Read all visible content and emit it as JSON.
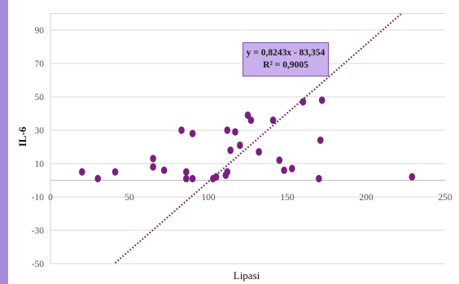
{
  "colors": {
    "left_strip": "#a78bd6",
    "point": "#7a1f82",
    "trendline": "#6b1c5e",
    "grid": "#d9d9d9",
    "equation_box": "#c9b0ec"
  },
  "chart_data": {
    "type": "scatter",
    "title": "",
    "xlabel": "Lipasi",
    "ylabel": "IL-6",
    "xlim": [
      0,
      250
    ],
    "ylim": [
      -50,
      100
    ],
    "x_ticks": [
      "0",
      "50",
      "100",
      "150",
      "200",
      "250"
    ],
    "y_ticks": [
      "90",
      "70",
      "50",
      "30",
      "10",
      "-10",
      "-30",
      "-50"
    ],
    "grid": "horizontal",
    "points": [
      [
        20,
        5
      ],
      [
        30,
        1
      ],
      [
        41,
        5
      ],
      [
        65,
        13
      ],
      [
        65,
        8
      ],
      [
        72,
        6
      ],
      [
        83,
        30
      ],
      [
        86,
        5
      ],
      [
        86,
        1
      ],
      [
        90,
        28
      ],
      [
        90,
        1
      ],
      [
        103,
        1
      ],
      [
        105,
        2
      ],
      [
        111,
        3
      ],
      [
        112,
        5
      ],
      [
        112,
        30
      ],
      [
        114,
        18
      ],
      [
        117,
        29
      ],
      [
        120,
        21
      ],
      [
        125,
        39
      ],
      [
        127,
        36
      ],
      [
        132,
        17
      ],
      [
        141,
        36
      ],
      [
        145,
        12
      ],
      [
        148,
        6
      ],
      [
        153,
        7
      ],
      [
        160,
        47
      ],
      [
        170,
        1
      ],
      [
        171,
        24
      ],
      [
        172,
        48
      ],
      [
        229,
        2
      ]
    ],
    "trendline": {
      "equation": "y = 0,8243x - 83,354",
      "r_squared": "R² = 0,9005",
      "slope": 0.8243,
      "intercept": -83.354,
      "x_range": [
        41,
        222
      ]
    }
  }
}
